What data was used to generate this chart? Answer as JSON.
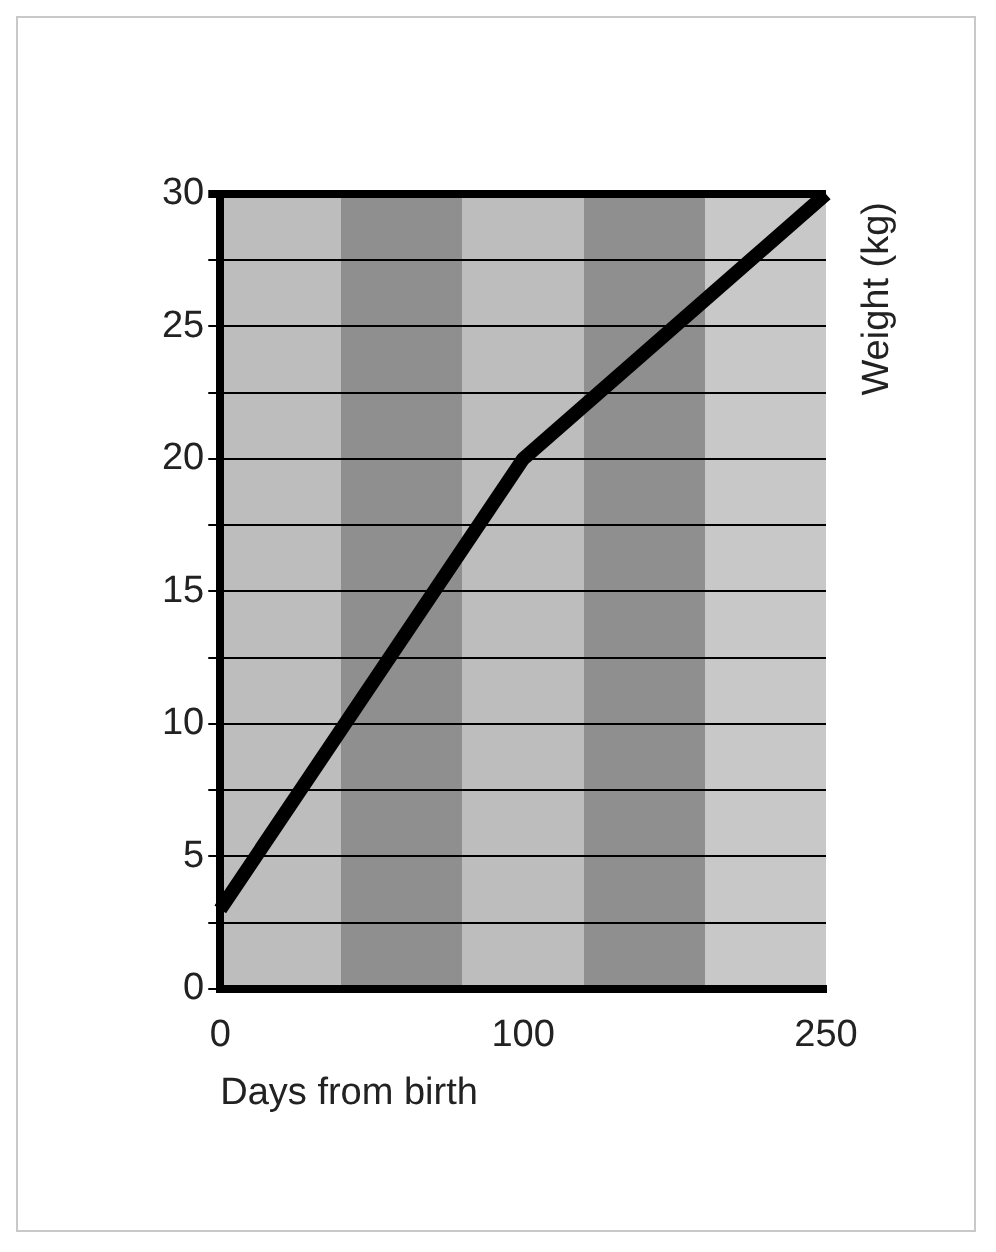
{
  "chart_data": {
    "type": "line",
    "xlabel": "Days from birth",
    "ylabel": "Weight (kg)",
    "categories": [
      "0",
      "100",
      "250"
    ],
    "values": [
      3,
      20,
      30
    ],
    "color": "#000000",
    "ylim": [
      0,
      30
    ],
    "yticks": [
      0,
      {
        "value": 2.5,
        "label": null
      },
      5,
      {
        "value": 7.5,
        "label": null
      },
      10,
      {
        "value": 12.5,
        "label": null
      },
      15,
      {
        "value": 17.5,
        "label": null
      },
      20,
      {
        "value": 22.5,
        "label": null
      },
      25,
      {
        "value": 27.5,
        "label": null
      },
      30
    ],
    "grid": "y"
  }
}
